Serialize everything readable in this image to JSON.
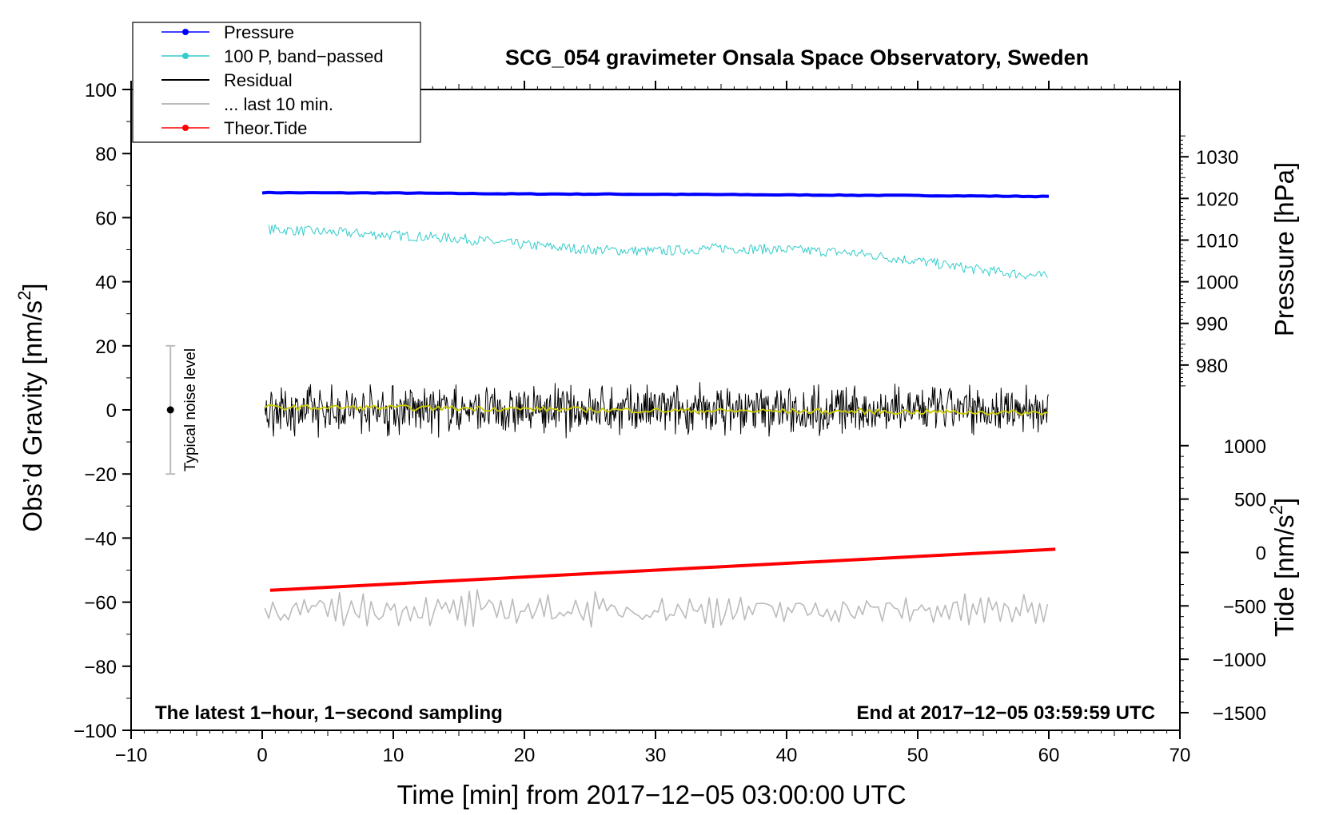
{
  "chart_data": {
    "type": "line",
    "title": "SCG_054 gravimeter Onsala Space Observatory, Sweden",
    "xlabel": "Time [min] from 2017−12−05 03:00:00 UTC",
    "ylabel_left": "Obs’d Gravity [nm/s",
    "ylabel_left_sup": "2",
    "ylabel_left_close": "]",
    "ylabel_right_pressure": "Pressure [hPa]",
    "ylabel_right_tide": "Tide [nm/s",
    "ylabel_right_tide_sup": "2",
    "ylabel_right_tide_close": "]",
    "annotation_left": "The latest 1−hour, 1−second sampling",
    "annotation_right": "End at 2017−12−05 03:59:59 UTC",
    "noise_label": "Typical noise level",
    "noise_range": [
      -20,
      20
    ],
    "noise_center": 0,
    "noise_x": -7,
    "xlim": [
      -10,
      70
    ],
    "ylim": [
      -100,
      100
    ],
    "x_ticks": [
      -10,
      0,
      10,
      20,
      30,
      40,
      50,
      60,
      70
    ],
    "x_tick_labels": [
      "−10",
      "0",
      "10",
      "20",
      "30",
      "40",
      "50",
      "60",
      "70"
    ],
    "y_ticks": [
      -100,
      -80,
      -60,
      -40,
      -20,
      0,
      20,
      40,
      60,
      80,
      100
    ],
    "y_tick_labels": [
      "−100",
      "−80",
      "−60",
      "−40",
      "−20",
      "0",
      "20",
      "40",
      "60",
      "80",
      "100"
    ],
    "pressure_axis": {
      "ticks": [
        980,
        990,
        1000,
        1010,
        1020,
        1030
      ],
      "tick_labels": [
        "980",
        "990",
        "1000",
        "1010",
        "1020",
        "1030"
      ],
      "left_units_per_hpa": 1.3,
      "offset_hpa": 1000
    },
    "tide_axis": {
      "ticks": [
        -1500,
        -1000,
        -500,
        0,
        500,
        1000
      ],
      "tick_labels": [
        "−1500",
        "−1000",
        "−500",
        "0",
        "500",
        "1000"
      ],
      "left_units_per_nms2": 0.04,
      "offset_left": -50
    },
    "legend": [
      {
        "label": "Pressure",
        "color": "#0000ff",
        "marker": true
      },
      {
        "label": "100 P, band−passed",
        "color": "#33cccc",
        "marker": true
      },
      {
        "label": "Residual",
        "color": "#000000",
        "marker": false
      },
      {
        "label": "... last 10 min.",
        "color": "#bbbbbb",
        "marker": false
      },
      {
        "label": "Theor.Tide",
        "color": "#ff0000",
        "marker": true
      }
    ],
    "series": [
      {
        "name": "Pressure",
        "color": "#0000ff",
        "x": [
          0,
          10,
          20,
          30,
          40,
          50,
          60
        ],
        "y": [
          67.8,
          67.7,
          67.4,
          67.3,
          67.1,
          66.9,
          66.6
        ]
      },
      {
        "name": "100 P, band−passed",
        "color": "#33cccc",
        "x": [
          0,
          5,
          10,
          15,
          20,
          25,
          30,
          35,
          40,
          45,
          50,
          55,
          60
        ],
        "y": [
          56.5,
          55.5,
          54.5,
          53.5,
          51.5,
          50.0,
          49.5,
          50.5,
          50.0,
          49.0,
          46.5,
          43.5,
          41.5
        ]
      },
      {
        "name": "Residual",
        "color": "#000000",
        "x": [
          0,
          60
        ],
        "y": [
          0,
          0
        ],
        "noise_amplitude": 6
      },
      {
        "name": "Residual (smoothed)",
        "color": "#cccc00",
        "x": [
          0,
          10,
          20,
          30,
          40,
          50,
          60
        ],
        "y": [
          0.8,
          0.7,
          0.3,
          -0.2,
          -0.4,
          -0.6,
          -0.9
        ]
      },
      {
        "name": "... last 10 min.",
        "color": "#bbbbbb",
        "x": [
          0,
          60
        ],
        "y": [
          -62.5,
          -62.5
        ],
        "noise_amplitude": 4
      },
      {
        "name": "Theor.Tide",
        "color": "#ff0000",
        "x": [
          0.6,
          60.5
        ],
        "y": [
          -56.3,
          -43.5
        ]
      }
    ]
  }
}
